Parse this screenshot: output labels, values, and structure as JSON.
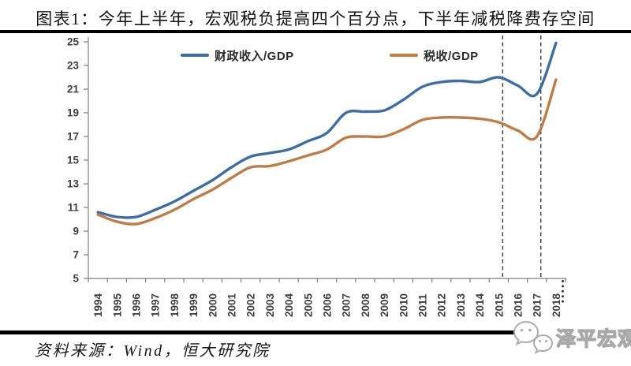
{
  "chart_data": {
    "type": "line",
    "title": "图表1：今年上半年，宏观税负提高四个百分点，下半年减税降费存空间",
    "categories": [
      "1994",
      "1995",
      "1996",
      "1997",
      "1998",
      "1999",
      "2000",
      "2001",
      "2002",
      "2003",
      "2004",
      "2005",
      "2006",
      "2007",
      "2008",
      "2009",
      "2010",
      "2011",
      "2012",
      "2013",
      "2014",
      "2015",
      "2016",
      "2017",
      "2018"
    ],
    "series": [
      {
        "name": "财政收入/GDP",
        "color": "#3c6da6",
        "values": [
          10.6,
          10.2,
          10.2,
          10.8,
          11.5,
          12.4,
          13.3,
          14.4,
          15.3,
          15.6,
          15.9,
          16.6,
          17.3,
          19.0,
          19.1,
          19.2,
          20.1,
          21.2,
          21.6,
          21.7,
          21.6,
          22.0,
          21.3,
          20.6,
          24.9
        ]
      },
      {
        "name": "税收/GDP",
        "color": "#c07c45",
        "values": [
          10.4,
          9.8,
          9.6,
          10.1,
          10.8,
          11.7,
          12.5,
          13.5,
          14.4,
          14.5,
          14.9,
          15.4,
          15.9,
          16.9,
          17.0,
          17.0,
          17.6,
          18.4,
          18.6,
          18.6,
          18.5,
          18.2,
          17.5,
          17.0,
          21.8
        ]
      }
    ],
    "ylim": [
      5,
      25
    ],
    "yticks": [
      5,
      7,
      9,
      11,
      13,
      15,
      17,
      19,
      21,
      23,
      25
    ],
    "xlabel": "",
    "ylabel": "",
    "grid": false,
    "legend_position": "top",
    "annotations": {
      "vline_years": [
        "2015",
        "2017"
      ],
      "vline_style": "dashed",
      "axis_end_dots": true
    }
  },
  "footer": {
    "source": "资料来源：Wind，恒大研究院",
    "brand": "泽平宏观"
  }
}
